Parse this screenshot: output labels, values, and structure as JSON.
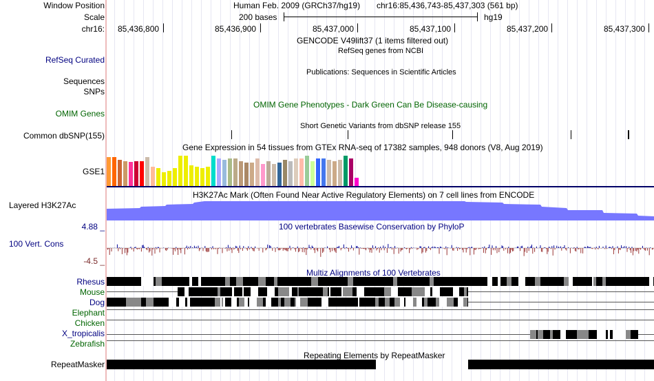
{
  "labels": {
    "window_position": "Window Position",
    "scale": "Scale",
    "chrom": "chr16:",
    "refseq": "RefSeq Curated",
    "sequences": "Sequences",
    "snps": "SNPs",
    "omim": "OMIM Genes",
    "dbsnp": "Common dbSNP(155)",
    "gse1": "GSE1",
    "h3k27ac": "Layered H3K27Ac",
    "cons_max": "4.88 _",
    "cons": "100 Vert. Cons",
    "cons_min": "-4.5 _",
    "species": [
      "Rhesus",
      "Mouse",
      "Dog",
      "Elephant",
      "Chicken",
      "X_tropicalis",
      "Zebrafish"
    ],
    "repeatmasker": "RepeatMasker"
  },
  "header": {
    "assembly": "Human Feb. 2009 (GRCh37/hg19)",
    "position": "chr16:85,436,743-85,437,303 (561 bp)",
    "scale_text": "200 bases",
    "db": "hg19",
    "ticks": [
      "85,436,800",
      "85,436,900",
      "85,437,000",
      "85,437,100",
      "85,437,200",
      "85,437,300"
    ]
  },
  "tracks": {
    "gencode": "GENCODE V49lift37 (1 items filtered out)",
    "refseq": "RefSeq genes from NCBI",
    "publications": "Publications: Sequences in Scientific Articles",
    "omim": "OMIM Gene Phenotypes - Dark Green Can Be Disease-causing",
    "dbsnp": "Short Genetic Variants from dbSNP release 155",
    "gtex": "Gene Expression in 54 tissues from GTEx RNA-seq of 17382 samples, 948 donors (V8, Aug 2019)",
    "h3k27ac": "H3K27Ac Mark (Often Found Near Active Regulatory Elements) on 7 cell lines from ENCODE",
    "phylop": "100 vertebrates Basewise Conservation by PhyloP",
    "multiz": "Multiz Alignments of 100 Vertebrates",
    "repeatmasker": "Repeating Elements by RepeatMasker"
  },
  "colors": {
    "nav": "#000080",
    "green": "#006400",
    "h3k27ac": "#7777ff",
    "separator": "#eebbbb"
  }
}
